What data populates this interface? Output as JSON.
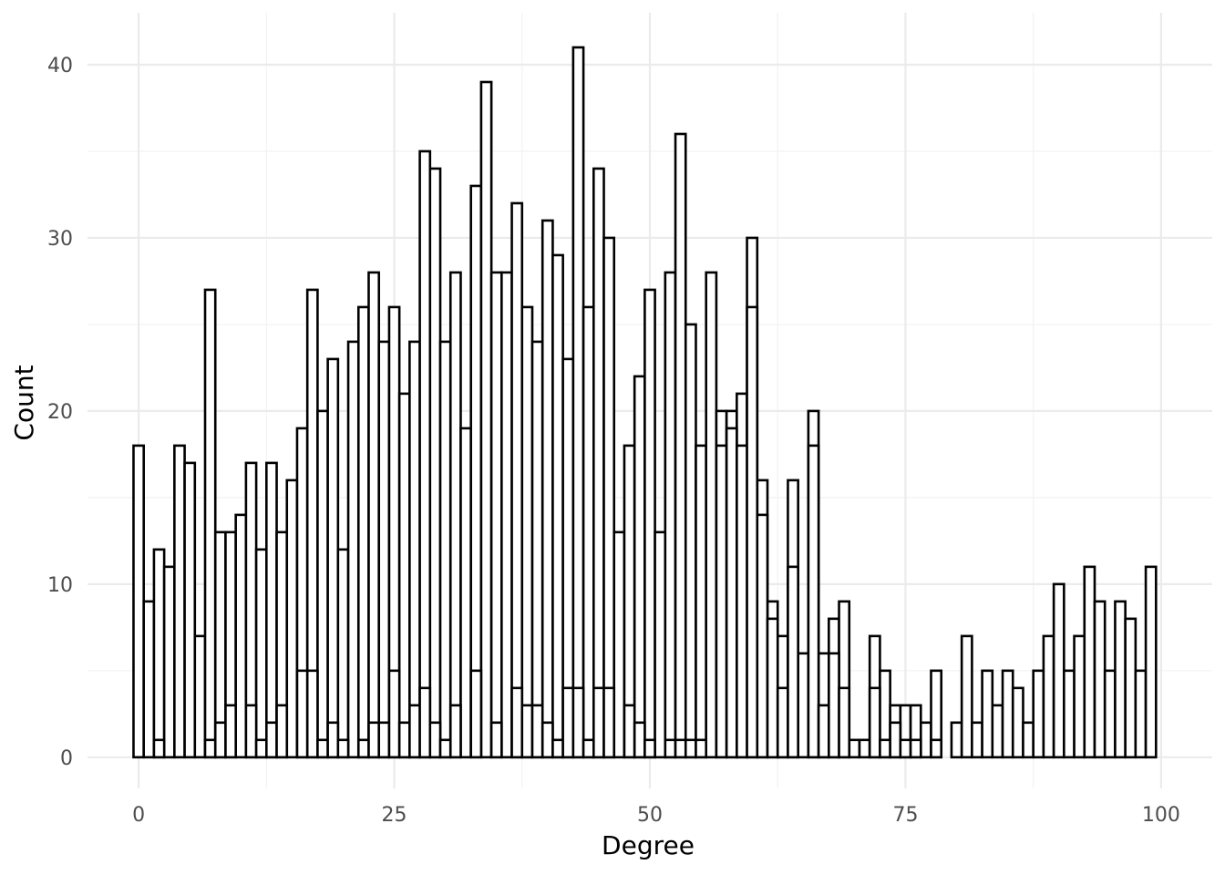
{
  "chart_data": {
    "type": "bar",
    "subtype": "histogram",
    "title": "",
    "xlabel": "Degree",
    "ylabel": "Count",
    "xlim": [
      -5,
      105
    ],
    "ylim": [
      -1.8,
      43.0
    ],
    "x_ticks": [
      0,
      25,
      50,
      75,
      100
    ],
    "x_tick_labels": [
      "0",
      "25",
      "50",
      "75",
      "100"
    ],
    "y_ticks": [
      0,
      10,
      20,
      30,
      40
    ],
    "y_tick_labels": [
      "0",
      "10",
      "20",
      "30",
      "40"
    ],
    "grid": true,
    "legend": "none",
    "bar_fill": "#ffffff",
    "bar_outline": "#000000",
    "series": [
      {
        "x": [
          0,
          1,
          2,
          3,
          4,
          5,
          6,
          7,
          8,
          9,
          10,
          11,
          12,
          13,
          14,
          15,
          16,
          17,
          18,
          19,
          20,
          21,
          22,
          23,
          24,
          25,
          26,
          27,
          28,
          29,
          30,
          31,
          32,
          33,
          34,
          35,
          36,
          37,
          38,
          39,
          40,
          41,
          42,
          43,
          44,
          45,
          46,
          47,
          48,
          49,
          50,
          51,
          52,
          53,
          54,
          55,
          56,
          57,
          58,
          59,
          60,
          61,
          62,
          63,
          64,
          65,
          66,
          67,
          68,
          69,
          70,
          71,
          72,
          73,
          74,
          75,
          76,
          77,
          78,
          80,
          81,
          82,
          83,
          84,
          85,
          86,
          87,
          88,
          89,
          90,
          91,
          92,
          93,
          94,
          95,
          96,
          97,
          98,
          99
        ],
        "values": [
          18,
          9,
          12,
          11,
          18,
          17,
          7,
          27,
          13,
          13,
          14,
          17,
          12,
          17,
          13,
          16,
          19,
          27,
          20,
          23,
          12,
          24,
          26,
          28,
          24,
          26,
          21,
          24,
          35,
          34,
          24,
          28,
          19,
          33,
          39,
          28,
          28,
          32,
          26,
          24,
          31,
          29,
          23,
          41,
          26,
          34,
          30,
          13,
          18,
          22,
          27,
          13,
          28,
          36,
          25,
          18,
          28,
          20,
          20,
          21,
          30,
          16,
          9,
          7,
          16,
          6,
          20,
          6,
          8,
          9,
          1,
          1,
          7,
          5,
          3,
          3,
          3,
          2,
          5,
          2,
          7,
          2,
          5,
          3,
          5,
          4,
          2,
          5,
          7,
          10,
          5,
          7,
          11,
          9,
          5,
          9,
          8,
          5,
          11
        ]
      },
      {
        "x": [
          0,
          1,
          2,
          3,
          4,
          5,
          6,
          7,
          8,
          9,
          10,
          11,
          12,
          13,
          14,
          15,
          16,
          17,
          18,
          19,
          20,
          21,
          22,
          23,
          24,
          25,
          26,
          27,
          28,
          29,
          30,
          31,
          32,
          33,
          34,
          35,
          36,
          37,
          38,
          39,
          40,
          41,
          42,
          43,
          44,
          45,
          46,
          47,
          48,
          49,
          50,
          51,
          52,
          53,
          54,
          55,
          56,
          57,
          58,
          59,
          60,
          61,
          62,
          63,
          64,
          65,
          66,
          67,
          68,
          69,
          70,
          71,
          72,
          73,
          74,
          75,
          76,
          77,
          78,
          80,
          81,
          82,
          83,
          84,
          85,
          86,
          87,
          88,
          89,
          90,
          91,
          92,
          93,
          94,
          95,
          96,
          97,
          98,
          99
        ],
        "values": [
          0,
          0,
          1,
          0,
          0,
          0,
          0,
          1,
          2,
          3,
          0,
          3,
          1,
          2,
          3,
          0,
          5,
          5,
          1,
          2,
          1,
          0,
          1,
          2,
          2,
          5,
          2,
          3,
          4,
          2,
          1,
          3,
          0,
          5,
          0,
          2,
          0,
          4,
          3,
          3,
          2,
          1,
          4,
          4,
          1,
          4,
          4,
          0,
          3,
          2,
          1,
          0,
          1,
          1,
          1,
          1,
          0,
          18,
          19,
          18,
          26,
          14,
          8,
          4,
          11,
          0,
          18,
          3,
          6,
          4,
          0,
          0,
          4,
          1,
          2,
          1,
          1,
          0,
          1,
          0,
          0,
          0,
          0,
          0,
          0,
          0,
          0,
          0,
          0,
          0,
          0,
          0,
          0,
          0,
          0,
          0,
          0,
          0,
          0
        ]
      }
    ]
  }
}
